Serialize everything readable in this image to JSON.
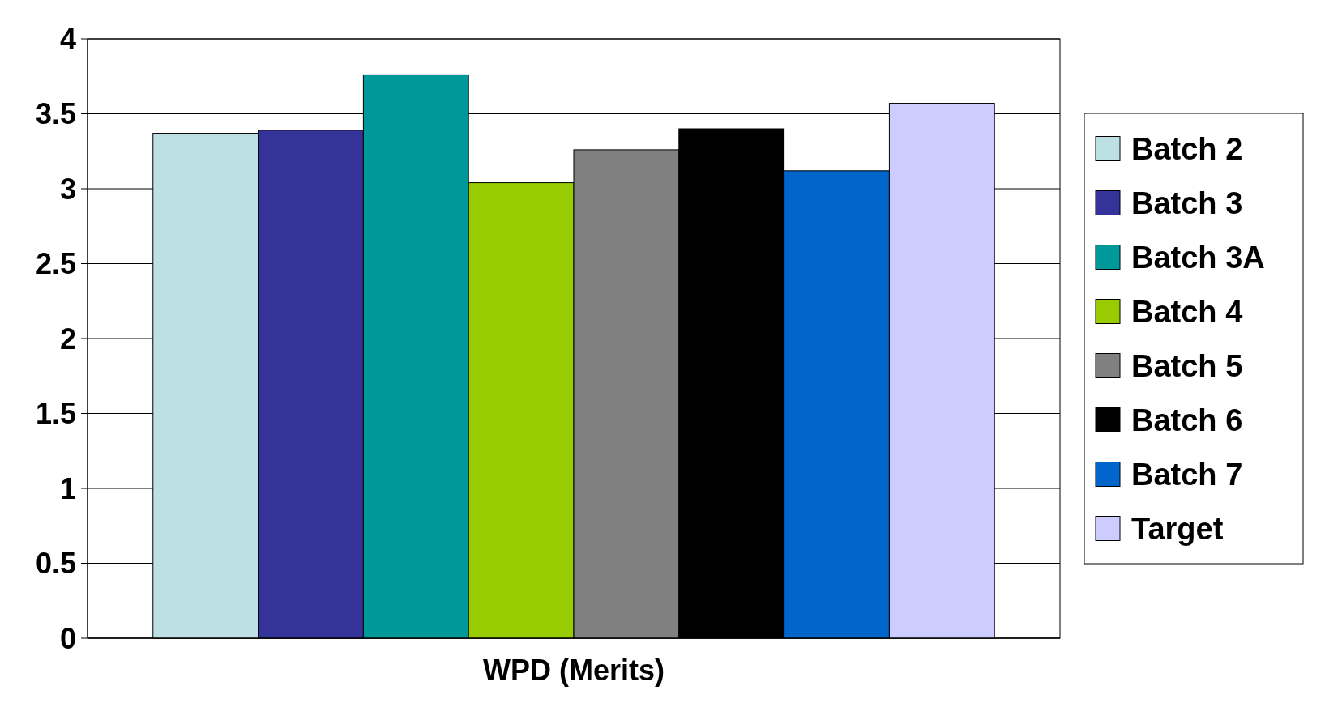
{
  "chart_data": {
    "type": "bar",
    "categories": [
      "WPD (Merits)"
    ],
    "series": [
      {
        "name": "Batch 2",
        "color": "#bce0e4",
        "values": [
          3.37
        ]
      },
      {
        "name": "Batch 3",
        "color": "#333399",
        "values": [
          3.39
        ]
      },
      {
        "name": "Batch 3A",
        "color": "#009999",
        "values": [
          3.76
        ]
      },
      {
        "name": "Batch 4",
        "color": "#99cc00",
        "values": [
          3.04
        ]
      },
      {
        "name": "Batch 5",
        "color": "#808080",
        "values": [
          3.26
        ]
      },
      {
        "name": "Batch 6",
        "color": "#000000",
        "values": [
          3.4
        ]
      },
      {
        "name": "Batch 7",
        "color": "#0066cc",
        "values": [
          3.12
        ]
      },
      {
        "name": "Target",
        "color": "#ccccff",
        "values": [
          3.57
        ]
      }
    ],
    "ylim": [
      0,
      4
    ],
    "yticks": [
      0,
      0.5,
      1,
      1.5,
      2,
      2.5,
      3,
      3.5,
      4
    ],
    "grid": "y",
    "legend": "right"
  }
}
